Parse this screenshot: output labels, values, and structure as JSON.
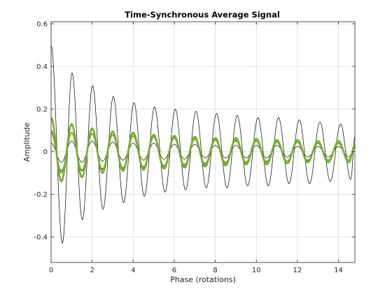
{
  "chart_data": {
    "type": "line",
    "title": "Time-Synchronous Average Signal",
    "xlabel": "Phase (rotations)",
    "ylabel": "Amplitude",
    "xlim": [
      0,
      14.8
    ],
    "ylim": [
      -0.52,
      0.61
    ],
    "grid": true,
    "xticks": [
      0,
      2,
      4,
      6,
      8,
      10,
      12,
      14
    ],
    "xtick_labels": [
      "0",
      "2",
      "4",
      "6",
      "8",
      "10",
      "12",
      "14"
    ],
    "yticks": [
      -0.4,
      -0.2,
      0,
      0.2,
      0.4,
      0.6
    ],
    "ytick_labels": [
      "-0.4",
      "-0.2",
      "0",
      "0.2",
      "0.4",
      "0.6"
    ],
    "colors": {
      "black_series": "#000000",
      "green_series": "#77ac30"
    },
    "series": [
      {
        "color": "#000000",
        "width": 0.7,
        "points": [
          [
            0.0,
            0.5
          ],
          [
            0.55,
            -0.43
          ],
          [
            1.02,
            0.37
          ],
          [
            1.52,
            -0.32
          ],
          [
            2.02,
            0.31
          ],
          [
            2.53,
            -0.27
          ],
          [
            3.03,
            0.26
          ],
          [
            3.53,
            -0.24
          ],
          [
            4.04,
            0.23
          ],
          [
            4.54,
            -0.21
          ],
          [
            5.04,
            0.21
          ],
          [
            5.55,
            -0.19
          ],
          [
            6.05,
            0.2
          ],
          [
            6.55,
            -0.18
          ],
          [
            7.06,
            0.19
          ],
          [
            7.56,
            -0.17
          ],
          [
            8.06,
            0.18
          ],
          [
            8.57,
            -0.17
          ],
          [
            9.07,
            0.17
          ],
          [
            9.57,
            -0.16
          ],
          [
            10.08,
            0.16
          ],
          [
            10.58,
            -0.16
          ],
          [
            11.08,
            0.16
          ],
          [
            11.59,
            -0.15
          ],
          [
            12.09,
            0.15
          ],
          [
            12.59,
            -0.15
          ],
          [
            13.1,
            0.14
          ],
          [
            13.6,
            -0.14
          ],
          [
            14.1,
            0.13
          ],
          [
            14.6,
            -0.13
          ],
          [
            14.8,
            0.07
          ]
        ]
      },
      {
        "color": "#000000",
        "width": 0.7,
        "points": [
          [
            0.0,
            0.04
          ],
          [
            0.5,
            -0.05
          ],
          [
            1.0,
            0.05
          ],
          [
            1.5,
            -0.05
          ],
          [
            2.0,
            0.05
          ],
          [
            2.5,
            -0.045
          ],
          [
            3.0,
            0.045
          ],
          [
            3.5,
            -0.04
          ],
          [
            4.0,
            0.04
          ],
          [
            4.5,
            -0.04
          ],
          [
            5.0,
            0.04
          ],
          [
            5.5,
            -0.035
          ],
          [
            6.0,
            0.035
          ],
          [
            6.5,
            -0.035
          ],
          [
            7.0,
            0.035
          ],
          [
            7.5,
            -0.03
          ],
          [
            8.0,
            0.03
          ],
          [
            8.5,
            -0.03
          ],
          [
            9.0,
            0.03
          ],
          [
            9.5,
            -0.03
          ],
          [
            10.0,
            0.03
          ],
          [
            10.5,
            -0.03
          ],
          [
            11.0,
            0.03
          ],
          [
            11.5,
            -0.025
          ],
          [
            12.0,
            0.025
          ],
          [
            12.5,
            -0.025
          ],
          [
            13.0,
            0.025
          ],
          [
            13.5,
            -0.025
          ],
          [
            14.0,
            0.025
          ],
          [
            14.5,
            -0.025
          ],
          [
            14.8,
            0.02
          ]
        ]
      },
      {
        "color": "#000000",
        "width": 0.7,
        "points": [
          [
            0.0,
            0.1
          ],
          [
            0.5,
            -0.09
          ],
          [
            1.0,
            0.09
          ],
          [
            1.5,
            -0.085
          ],
          [
            2.0,
            0.085
          ],
          [
            2.5,
            -0.08
          ],
          [
            3.0,
            0.08
          ],
          [
            3.5,
            -0.075
          ],
          [
            4.0,
            0.075
          ],
          [
            4.5,
            -0.07
          ],
          [
            5.0,
            0.07
          ],
          [
            5.5,
            -0.065
          ],
          [
            6.0,
            0.065
          ],
          [
            6.5,
            -0.06
          ],
          [
            7.0,
            0.06
          ],
          [
            7.5,
            -0.055
          ],
          [
            8.0,
            0.055
          ],
          [
            8.5,
            -0.05
          ],
          [
            9.0,
            0.05
          ],
          [
            9.5,
            -0.05
          ],
          [
            10.0,
            0.05
          ],
          [
            10.5,
            -0.045
          ],
          [
            11.0,
            0.045
          ],
          [
            11.5,
            -0.045
          ],
          [
            12.0,
            0.045
          ],
          [
            12.5,
            -0.04
          ],
          [
            13.0,
            0.04
          ],
          [
            13.5,
            -0.04
          ],
          [
            14.0,
            0.04
          ],
          [
            14.5,
            -0.04
          ],
          [
            14.8,
            0.03
          ]
        ]
      },
      {
        "color": "#77ac30",
        "width": 2.6,
        "points": [
          [
            0.0,
            0.16
          ],
          [
            0.5,
            -0.14
          ],
          [
            1.0,
            0.13
          ],
          [
            1.5,
            -0.12
          ],
          [
            2.0,
            0.11
          ],
          [
            2.5,
            -0.1
          ],
          [
            3.0,
            0.095
          ],
          [
            3.5,
            -0.09
          ],
          [
            4.0,
            0.09
          ],
          [
            4.5,
            -0.085
          ],
          [
            5.0,
            0.08
          ],
          [
            5.5,
            -0.08
          ],
          [
            6.0,
            0.075
          ],
          [
            6.5,
            -0.075
          ],
          [
            7.0,
            0.07
          ],
          [
            7.5,
            -0.07
          ],
          [
            8.0,
            0.065
          ],
          [
            8.5,
            -0.065
          ],
          [
            9.0,
            0.065
          ],
          [
            9.5,
            -0.06
          ],
          [
            10.0,
            0.06
          ],
          [
            10.5,
            -0.06
          ],
          [
            11.0,
            0.055
          ],
          [
            11.5,
            -0.055
          ],
          [
            12.0,
            0.055
          ],
          [
            12.5,
            -0.05
          ],
          [
            13.0,
            0.05
          ],
          [
            13.5,
            -0.05
          ],
          [
            14.0,
            0.05
          ],
          [
            14.5,
            -0.05
          ],
          [
            14.8,
            0.03
          ]
        ]
      },
      {
        "color": "#77ac30",
        "width": 2.0,
        "points": [
          [
            0.0,
            0.09
          ],
          [
            0.5,
            -0.1
          ],
          [
            1.0,
            0.09
          ],
          [
            1.5,
            -0.09
          ],
          [
            2.0,
            0.085
          ],
          [
            2.5,
            -0.085
          ],
          [
            3.0,
            0.08
          ],
          [
            3.5,
            -0.08
          ],
          [
            4.0,
            0.075
          ],
          [
            4.5,
            -0.075
          ],
          [
            5.0,
            0.07
          ],
          [
            5.5,
            -0.07
          ],
          [
            6.0,
            0.065
          ],
          [
            6.5,
            -0.065
          ],
          [
            7.0,
            0.06
          ],
          [
            7.5,
            -0.06
          ],
          [
            8.0,
            0.055
          ],
          [
            8.5,
            -0.055
          ],
          [
            9.0,
            0.055
          ],
          [
            9.5,
            -0.05
          ],
          [
            10.0,
            0.05
          ],
          [
            10.5,
            -0.05
          ],
          [
            11.0,
            0.045
          ],
          [
            11.5,
            -0.045
          ],
          [
            12.0,
            0.045
          ],
          [
            12.5,
            -0.045
          ],
          [
            13.0,
            0.04
          ],
          [
            13.5,
            -0.04
          ],
          [
            14.0,
            0.04
          ],
          [
            14.5,
            -0.04
          ],
          [
            14.8,
            0.02
          ]
        ]
      }
    ]
  }
}
